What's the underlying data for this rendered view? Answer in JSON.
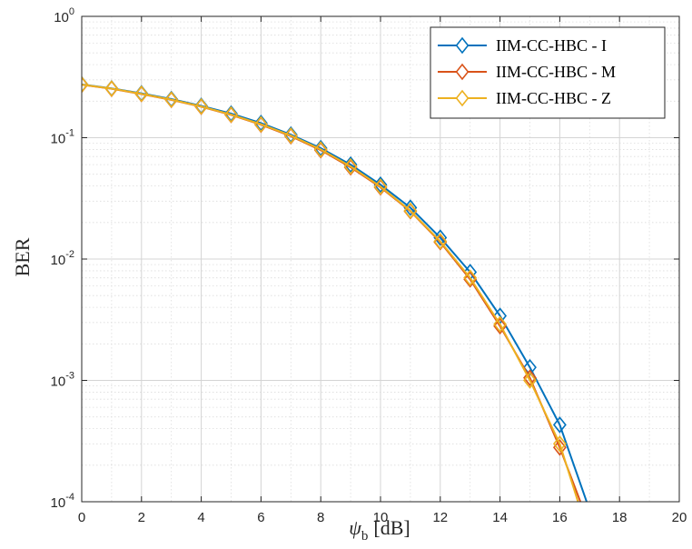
{
  "chart_data": {
    "type": "line",
    "title": "",
    "xlabel": "[dB]",
    "xlabel_symbol": "ψ",
    "xlabel_subscript": "b",
    "ylabel": "BER",
    "xlim": [
      0,
      20
    ],
    "ylim": [
      0.0001,
      1
    ],
    "yscale": "log",
    "grid": true,
    "minor_grid": true,
    "legend_position": "top-right",
    "marker": "diamond",
    "x_ticks": [
      "0",
      "2",
      "4",
      "6",
      "8",
      "10",
      "12",
      "14",
      "16",
      "18",
      "20"
    ],
    "y_ticks": [
      {
        "value": 1,
        "base": "10",
        "exp": "0"
      },
      {
        "value": 0.1,
        "base": "10",
        "exp": "-1"
      },
      {
        "value": 0.01,
        "base": "10",
        "exp": "-2"
      },
      {
        "value": 0.001,
        "base": "10",
        "exp": "-3"
      },
      {
        "value": 0.0001,
        "base": "10",
        "exp": "-4"
      }
    ],
    "series": [
      {
        "name": "IIM-CC-HBC - I",
        "color": "#0072BD",
        "x": [
          0,
          1,
          2,
          3,
          4,
          5,
          6,
          7,
          8,
          9,
          10,
          11,
          12,
          13,
          14,
          15,
          16,
          17
        ],
        "y": [
          0.275,
          0.255,
          0.232,
          0.208,
          0.183,
          0.158,
          0.132,
          0.106,
          0.082,
          0.06,
          0.041,
          0.0265,
          0.015,
          0.0078,
          0.0034,
          0.00128,
          0.00043,
          8.5e-05
        ],
        "marker_points": 17
      },
      {
        "name": "IIM-CC-HBC - M",
        "color": "#D95319",
        "x": [
          0,
          1,
          2,
          3,
          4,
          5,
          6,
          7,
          8,
          9,
          10,
          11,
          12,
          13,
          14,
          15,
          16,
          16.8
        ],
        "y": [
          0.273,
          0.253,
          0.229,
          0.205,
          0.18,
          0.154,
          0.128,
          0.103,
          0.079,
          0.057,
          0.039,
          0.0248,
          0.0138,
          0.0068,
          0.0028,
          0.00105,
          0.00028,
          8.5e-05
        ],
        "marker_points": 17
      },
      {
        "name": "IIM-CC-HBC - Z",
        "color": "#EDB120",
        "x": [
          0,
          1,
          2,
          3,
          4,
          5,
          6,
          7,
          8,
          9,
          10,
          11,
          12,
          13,
          14,
          15,
          16,
          16.7
        ],
        "y": [
          0.274,
          0.254,
          0.23,
          0.206,
          0.181,
          0.155,
          0.129,
          0.104,
          0.08,
          0.058,
          0.0395,
          0.025,
          0.014,
          0.007,
          0.0029,
          0.001,
          0.0003,
          8.5e-05
        ],
        "marker_points": 17
      }
    ]
  }
}
